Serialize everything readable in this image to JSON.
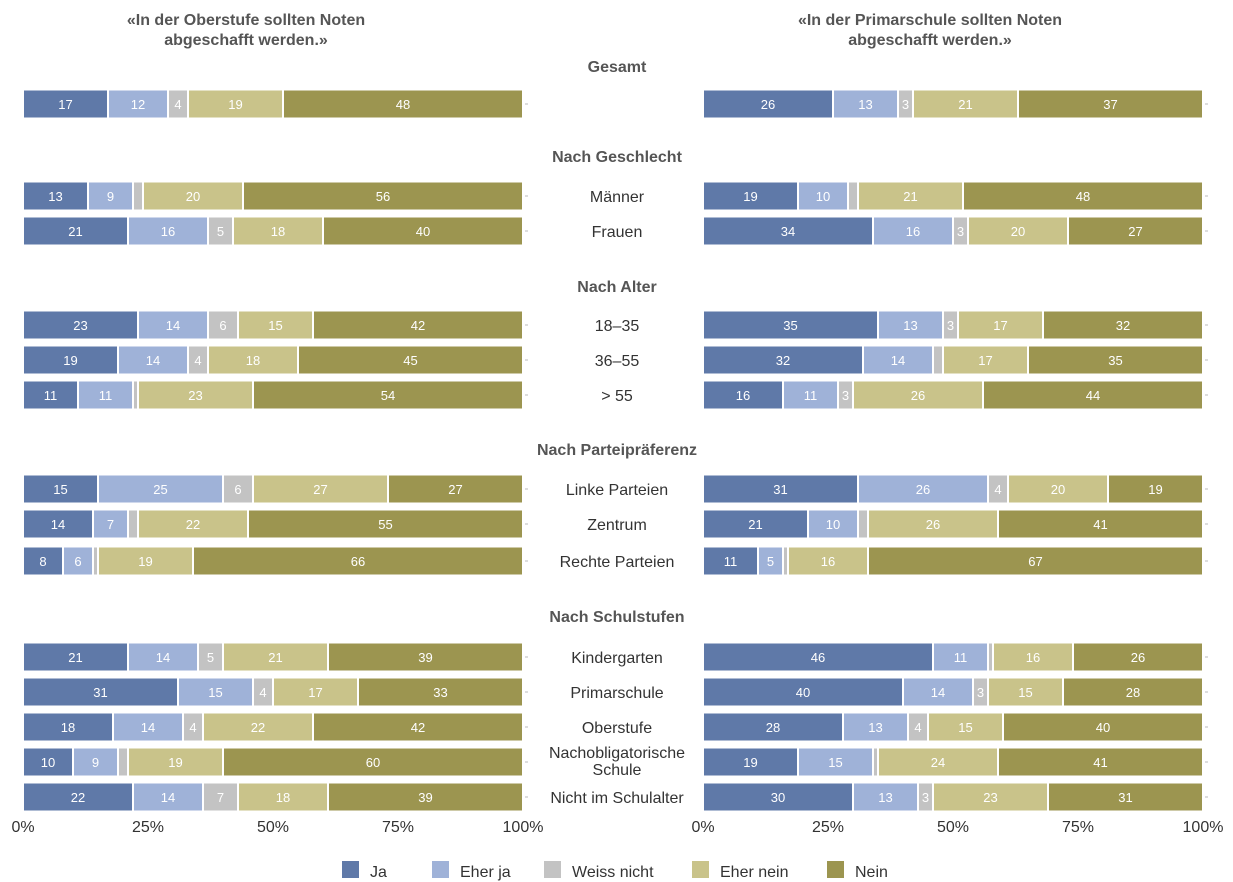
{
  "chart_data": {
    "type": "bar",
    "orientation": "horizontal",
    "stacked": true,
    "xlim": [
      0,
      100
    ],
    "tick_labels": [
      "0%",
      "25%",
      "50%",
      "75%",
      "100%"
    ],
    "categories": [
      "Ja",
      "Eher ja",
      "Weiss nicht",
      "Eher nein",
      "Nein"
    ],
    "colors": [
      "#5f79a8",
      "#9fb2d8",
      "#c3c3c3",
      "#c9c38a",
      "#9c9550"
    ],
    "legend_position": "bottom",
    "panels": [
      {
        "title_line1": "«In der Oberstufe sollten Noten",
        "title_line2": "abgeschafft werden.»",
        "groups": [
          {
            "title": "Gesamt",
            "rows": [
              {
                "label": "",
                "values": [
                  17,
                  12,
                  4,
                  19,
                  48
                ]
              }
            ]
          },
          {
            "title": "Nach Geschlecht",
            "rows": [
              {
                "label": "Männer",
                "values": [
                  13,
                  9,
                  2,
                  20,
                  56
                ]
              },
              {
                "label": "Frauen",
                "values": [
                  21,
                  16,
                  5,
                  18,
                  40
                ]
              }
            ]
          },
          {
            "title": "Nach Alter",
            "rows": [
              {
                "label": "18–35",
                "values": [
                  23,
                  14,
                  6,
                  15,
                  42
                ]
              },
              {
                "label": "36–55",
                "values": [
                  19,
                  14,
                  4,
                  18,
                  45
                ]
              },
              {
                "label": "> 55",
                "values": [
                  11,
                  11,
                  1,
                  23,
                  54
                ]
              }
            ]
          },
          {
            "title": "Nach Parteipräferenz",
            "rows": [
              {
                "label": "Linke Parteien",
                "values": [
                  15,
                  25,
                  6,
                  27,
                  27
                ]
              },
              {
                "label": "Zentrum",
                "values": [
                  14,
                  7,
                  2,
                  22,
                  55
                ]
              },
              {
                "label": "Rechte Parteien",
                "values": [
                  8,
                  6,
                  1,
                  19,
                  66
                ]
              }
            ]
          },
          {
            "title": "Nach Schulstufen",
            "rows": [
              {
                "label": "Kindergarten",
                "values": [
                  21,
                  14,
                  5,
                  21,
                  39
                ]
              },
              {
                "label": "Primarschule",
                "values": [
                  31,
                  15,
                  4,
                  17,
                  33
                ]
              },
              {
                "label": "Oberstufe",
                "values": [
                  18,
                  14,
                  4,
                  22,
                  42
                ]
              },
              {
                "label": "Nachobligatorische Schule",
                "values": [
                  10,
                  9,
                  2,
                  19,
                  60
                ]
              },
              {
                "label": "Nicht im Schulalter",
                "values": [
                  22,
                  14,
                  7,
                  18,
                  39
                ]
              }
            ]
          }
        ]
      },
      {
        "title_line1": "«In der Primarschule sollten Noten",
        "title_line2": "abgeschafft werden.»",
        "groups": [
          {
            "title": "Gesamt",
            "rows": [
              {
                "label": "",
                "values": [
                  26,
                  13,
                  3,
                  21,
                  37
                ]
              }
            ]
          },
          {
            "title": "Nach Geschlecht",
            "rows": [
              {
                "label": "Männer",
                "values": [
                  19,
                  10,
                  2,
                  21,
                  48
                ]
              },
              {
                "label": "Frauen",
                "values": [
                  34,
                  16,
                  3,
                  20,
                  27
                ]
              }
            ]
          },
          {
            "title": "Nach Alter",
            "rows": [
              {
                "label": "18–35",
                "values": [
                  35,
                  13,
                  3,
                  17,
                  32
                ]
              },
              {
                "label": "36–55",
                "values": [
                  32,
                  14,
                  2,
                  17,
                  35
                ]
              },
              {
                "label": "> 55",
                "values": [
                  16,
                  11,
                  3,
                  26,
                  44
                ]
              }
            ]
          },
          {
            "title": "Nach Parteipräferenz",
            "rows": [
              {
                "label": "Linke Parteien",
                "values": [
                  31,
                  26,
                  4,
                  20,
                  19
                ]
              },
              {
                "label": "Zentrum",
                "values": [
                  21,
                  10,
                  2,
                  26,
                  41
                ]
              },
              {
                "label": "Rechte Parteien",
                "values": [
                  11,
                  5,
                  1,
                  16,
                  67
                ]
              }
            ]
          },
          {
            "title": "Nach Schulstufen",
            "rows": [
              {
                "label": "Kindergarten",
                "values": [
                  46,
                  11,
                  1,
                  16,
                  26
                ]
              },
              {
                "label": "Primarschule",
                "values": [
                  40,
                  14,
                  3,
                  15,
                  28
                ]
              },
              {
                "label": "Oberstufe",
                "values": [
                  28,
                  13,
                  4,
                  15,
                  40
                ]
              },
              {
                "label": "Nachobligatorische Schule",
                "values": [
                  19,
                  15,
                  1,
                  24,
                  41
                ]
              },
              {
                "label": "Nicht im Schulalter",
                "values": [
                  30,
                  13,
                  3,
                  23,
                  31
                ]
              }
            ]
          }
        ]
      }
    ]
  }
}
